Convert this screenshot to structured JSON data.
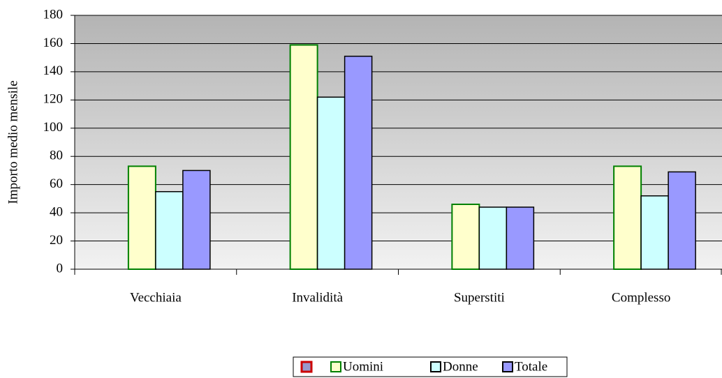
{
  "chart_data": {
    "type": "bar",
    "y_label": "Importo medio mensile",
    "categories": [
      "Vecchiaia",
      "Invalidità",
      "Superstiti",
      "Complesso"
    ],
    "series": [
      {
        "name": "Uomini",
        "color": "#ffffcc",
        "edge": "#008000",
        "values": [
          73,
          159,
          46,
          73
        ]
      },
      {
        "name": "Donne",
        "color": "#ccffff",
        "edge": "#000000",
        "values": [
          55,
          122,
          44,
          52
        ]
      },
      {
        "name": "Totale",
        "color": "#9999ff",
        "edge": "#000000",
        "values": [
          70,
          151,
          44,
          69
        ]
      }
    ],
    "ylim": [
      0,
      180
    ],
    "yticks": [
      0,
      20,
      40,
      60,
      80,
      100,
      120,
      140,
      160,
      180
    ],
    "grid": true
  }
}
